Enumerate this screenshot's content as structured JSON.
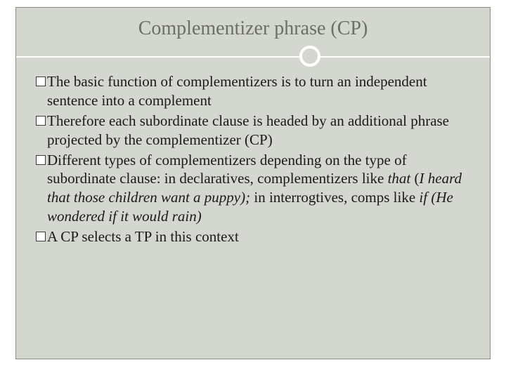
{
  "slide": {
    "title": "Complementizer phrase (CP)",
    "background_color": "#d4d7d0",
    "border_color": "#8a8f85",
    "title_color": "#6b6f66",
    "title_fontsize": 28,
    "divider_color": "#ffffff",
    "bullet_border_color": "#3a3a3a",
    "body_color": "#1a1a1a",
    "body_fontsize": 21,
    "bullets": [
      {
        "html": "The basic function of complementizers is to turn an independent sentence into a complement"
      },
      {
        "html": "Therefore each subordinate clause is headed by an additional phrase projected by the complementizer (CP)"
      },
      {
        "html": "Different types of complementizers depending on the type of subordinate clause: in declaratives, complementizers like <em>that</em>  (<em>I heard that those children want a puppy);</em> in interrogtives, comps like <em>if (He wondered if it would rain)</em>"
      },
      {
        "html": "A CP selects a TP in this context"
      }
    ]
  }
}
